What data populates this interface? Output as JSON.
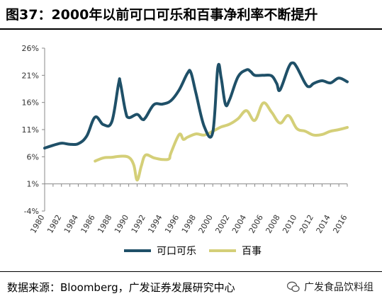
{
  "title": "图37：2000年以前可口可乐和百事净利率不断提升",
  "source": "数据来源：Bloomberg，广发证券发展研究中心",
  "watermark": "广发食品饮料组",
  "chart_data": {
    "type": "line",
    "ylim": [
      -4,
      26
    ],
    "y_ticks": [
      -4,
      1,
      6,
      11,
      16,
      21,
      26
    ],
    "y_tick_labels": [
      "-4%",
      "1%",
      "6%",
      "11%",
      "16%",
      "21%",
      "26%"
    ],
    "xlim": [
      1980,
      2016
    ],
    "x_tick_labels": [
      "1980",
      "1982",
      "1984",
      "1986",
      "1988",
      "1990",
      "1992",
      "1994",
      "1996",
      "1998",
      "2000",
      "2002",
      "2004",
      "2006",
      "2008",
      "2010",
      "2012",
      "2014",
      "2016"
    ],
    "grid": false,
    "legend_position": "bottom",
    "series": [
      {
        "name": "可口可乐",
        "color": "#1f5068",
        "points": [
          [
            1980,
            7.6
          ],
          [
            1981,
            8.1
          ],
          [
            1982,
            8.5
          ],
          [
            1983,
            8.3
          ],
          [
            1984,
            8.4
          ],
          [
            1985,
            9.8
          ],
          [
            1986,
            13.3
          ],
          [
            1987,
            11.9
          ],
          [
            1988,
            12.5
          ],
          [
            1988.8,
            19.5
          ],
          [
            1989,
            19.6
          ],
          [
            1989.6,
            14.5
          ],
          [
            1990,
            13.2
          ],
          [
            1991,
            13.8
          ],
          [
            1991.6,
            12.9
          ],
          [
            1992,
            13.2
          ],
          [
            1993,
            15.6
          ],
          [
            1994,
            15.7
          ],
          [
            1995,
            16.3
          ],
          [
            1996,
            18.3
          ],
          [
            1997,
            21.4
          ],
          [
            1997.4,
            21.5
          ],
          [
            1998,
            17.7
          ],
          [
            1999,
            11.5
          ],
          [
            2000,
            10.5
          ],
          [
            2000.6,
            22.4
          ],
          [
            2001,
            20.5
          ],
          [
            2001.5,
            15.7
          ],
          [
            2002,
            16.5
          ],
          [
            2003,
            20.7
          ],
          [
            2004,
            22.0
          ],
          [
            2004.5,
            21.7
          ],
          [
            2005,
            21.0
          ],
          [
            2006,
            21.0
          ],
          [
            2007,
            20.9
          ],
          [
            2007.6,
            19.5
          ],
          [
            2008,
            18.3
          ],
          [
            2009,
            22.4
          ],
          [
            2009.5,
            23.3
          ],
          [
            2010,
            22.5
          ],
          [
            2011,
            19.5
          ],
          [
            2011.5,
            18.9
          ],
          [
            2012,
            19.5
          ],
          [
            2013,
            20.0
          ],
          [
            2014,
            19.6
          ],
          [
            2015,
            20.5
          ],
          [
            2016,
            19.8
          ]
        ]
      },
      {
        "name": "百事",
        "color": "#d4cf78",
        "points": [
          [
            1986,
            5.2
          ],
          [
            1987,
            5.8
          ],
          [
            1988,
            5.9
          ],
          [
            1989,
            6.1
          ],
          [
            1990,
            5.9
          ],
          [
            1990.6,
            4.5
          ],
          [
            1991,
            1.7
          ],
          [
            1991.5,
            4.3
          ],
          [
            1992,
            6.3
          ],
          [
            1993,
            5.8
          ],
          [
            1994,
            5.5
          ],
          [
            1994.8,
            5.6
          ],
          [
            1995,
            6.6
          ],
          [
            1996,
            10.1
          ],
          [
            1996.5,
            9.2
          ],
          [
            1997,
            9.6
          ],
          [
            1998,
            10.2
          ],
          [
            1999,
            10.0
          ],
          [
            2000,
            10.7
          ],
          [
            2001,
            11.5
          ],
          [
            2002,
            12.0
          ],
          [
            2003,
            13.0
          ],
          [
            2004,
            14.5
          ],
          [
            2005,
            12.7
          ],
          [
            2006,
            15.9
          ],
          [
            2007,
            14.2
          ],
          [
            2008,
            12.2
          ],
          [
            2009,
            13.6
          ],
          [
            2010,
            11.2
          ],
          [
            2011,
            10.7
          ],
          [
            2012,
            10.0
          ],
          [
            2013,
            10.1
          ],
          [
            2014,
            10.7
          ],
          [
            2015,
            11.0
          ],
          [
            2016,
            11.4
          ]
        ]
      }
    ]
  }
}
